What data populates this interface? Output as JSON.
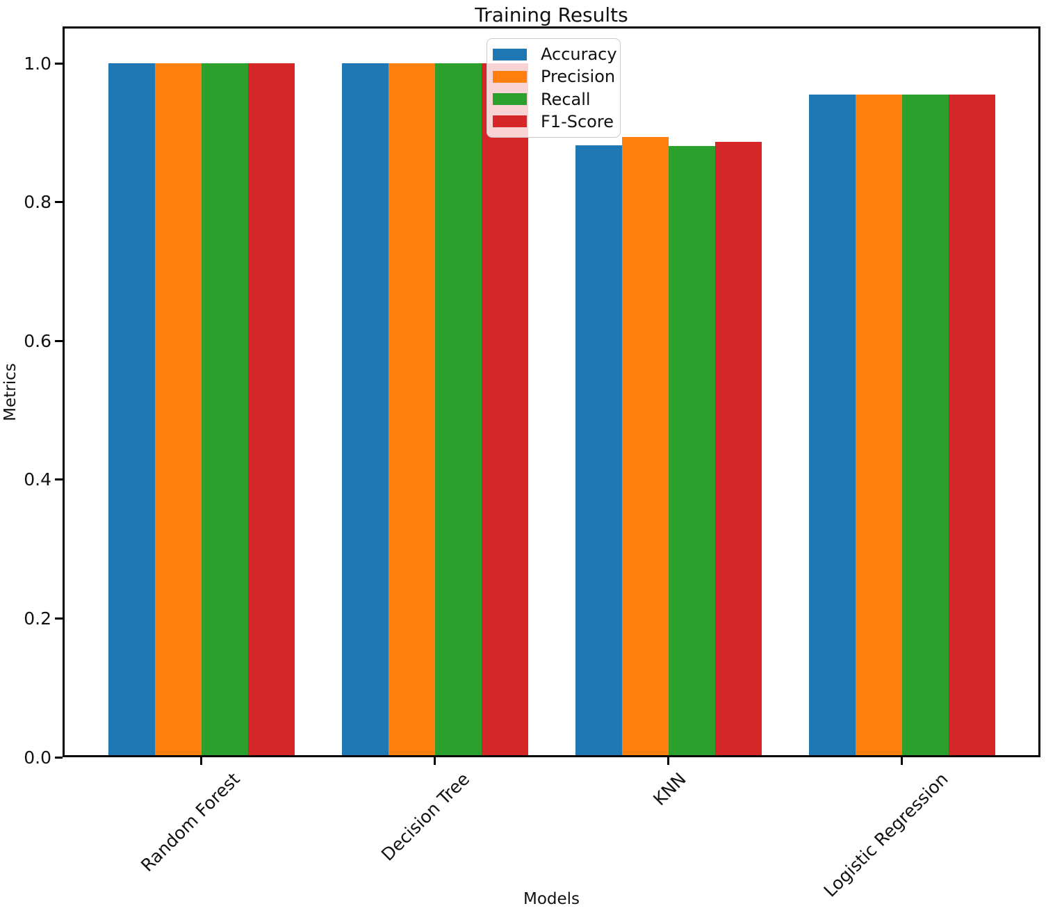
{
  "chart_data": {
    "type": "bar",
    "title": "Training Results",
    "xlabel": "Models",
    "ylabel": "Metrics",
    "categories": [
      "Random Forest",
      "Decision Tree",
      "KNN",
      "Logistic Regression"
    ],
    "series": [
      {
        "name": "Accuracy",
        "color": "#1f77b4",
        "values": [
          1.0,
          1.0,
          0.882,
          0.955
        ]
      },
      {
        "name": "Precision",
        "color": "#ff7f0e",
        "values": [
          1.0,
          1.0,
          0.894,
          0.955
        ]
      },
      {
        "name": "Recall",
        "color": "#2ca02c",
        "values": [
          1.0,
          1.0,
          0.881,
          0.955
        ]
      },
      {
        "name": "F1-Score",
        "color": "#d62728",
        "values": [
          1.0,
          1.0,
          0.887,
          0.955
        ]
      }
    ],
    "ytick_labels": [
      "0.0",
      "0.2",
      "0.4",
      "0.6",
      "0.8",
      "1.0"
    ],
    "ylim": [
      0,
      1.054
    ],
    "bar_width_units": 0.2,
    "legend": {
      "position": "upper center",
      "entries": [
        "Accuracy",
        "Precision",
        "Recall",
        "F1-Score"
      ]
    },
    "grid": false,
    "axis_color": "#000000",
    "text_color": "#111111"
  }
}
